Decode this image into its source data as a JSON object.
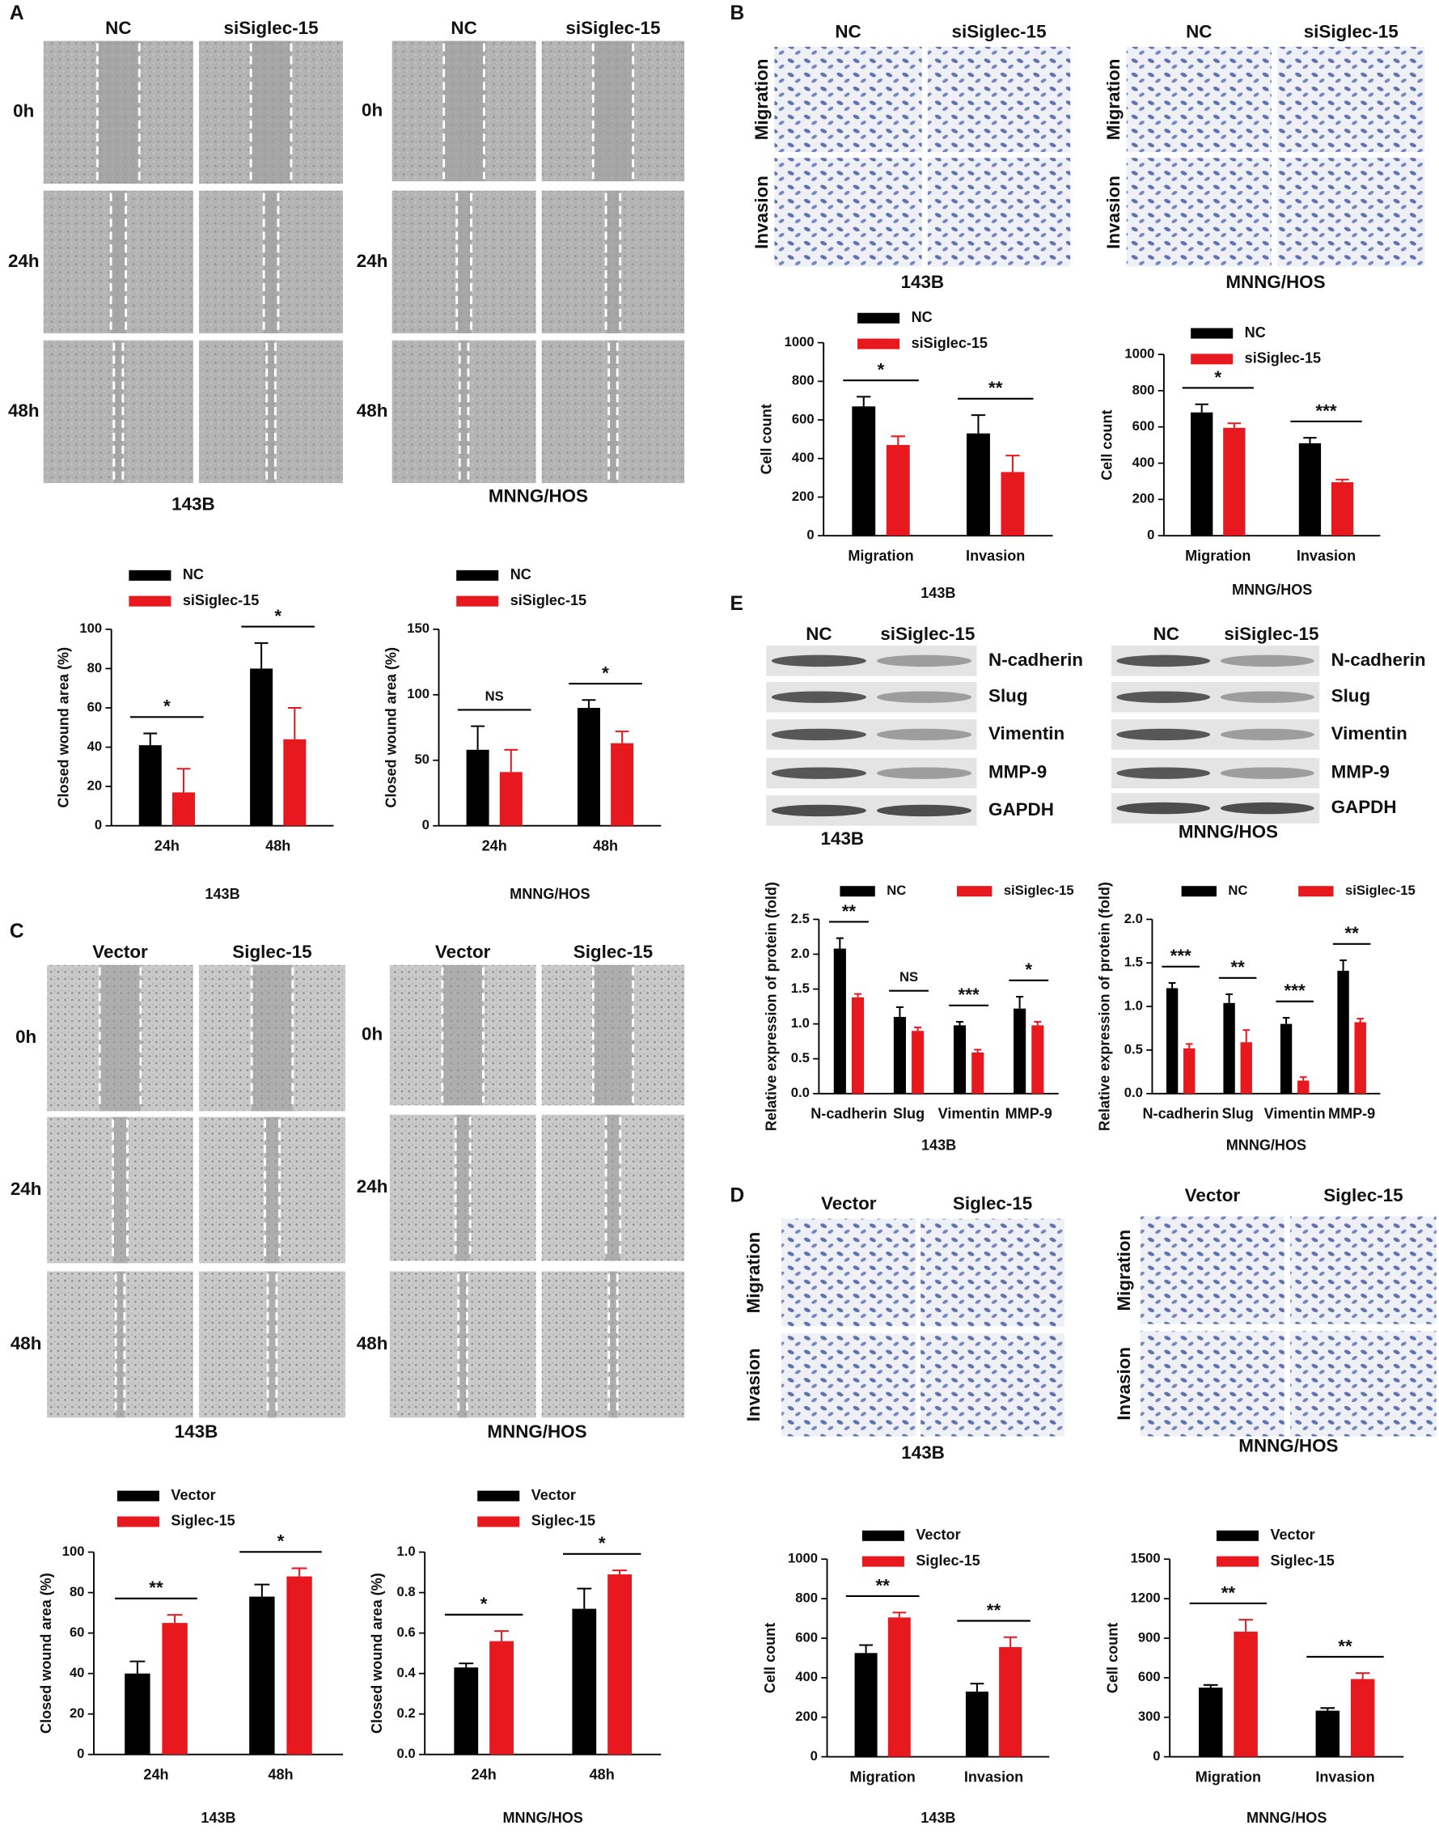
{
  "figure": {
    "panel_letters": [
      "A",
      "B",
      "E",
      "C",
      "D"
    ],
    "image_grids": [
      {
        "columns": [
          "NC",
          "siSiglec-15"
        ],
        "rows": [
          "0h",
          "24h",
          "48h"
        ],
        "caption": "143B"
      },
      {
        "columns": [
          "NC",
          "siSiglec-15"
        ],
        "rows": [
          "0h",
          "24h",
          "48h"
        ],
        "caption": "MNNG/HOS"
      },
      {
        "columns": [
          "NC",
          "siSiglec-15"
        ],
        "rows": [
          "Migration",
          "Invasion"
        ],
        "caption": "143B"
      },
      {
        "columns": [
          "NC",
          "siSiglec-15"
        ],
        "rows": [
          "Migration",
          "Invasion"
        ],
        "caption": "MNNG/HOS"
      },
      {
        "columns": [
          "Vector",
          "Siglec-15"
        ],
        "rows": [
          "0h",
          "24h",
          "48h"
        ],
        "caption": "143B"
      },
      {
        "columns": [
          "Vector",
          "Siglec-15"
        ],
        "rows": [
          "0h",
          "24h",
          "48h"
        ],
        "caption": "MNNG/HOS"
      },
      {
        "columns": [
          "Vector",
          "Siglec-15"
        ],
        "rows": [
          "Migration",
          "Invasion"
        ],
        "caption": "143B"
      },
      {
        "columns": [
          "Vector",
          "Siglec-15"
        ],
        "rows": [
          "Migration",
          "Invasion"
        ],
        "caption": "MNNG/HOS"
      }
    ],
    "blots": [
      {
        "columns": [
          "NC",
          "siSiglec-15"
        ],
        "proteins": [
          "N-cadherin",
          "Slug",
          "Vimentin",
          "MMP-9",
          "GAPDH"
        ],
        "caption": "143B"
      },
      {
        "columns": [
          "NC",
          "siSiglec-15"
        ],
        "proteins": [
          "N-cadherin",
          "Slug",
          "Vimentin",
          "MMP-9",
          "GAPDH"
        ],
        "caption": "MNNG/HOS"
      }
    ]
  },
  "chart_data": [
    {
      "type": "bar",
      "y_label": "Closed wound area (%)",
      "x_label": "143B",
      "categories": [
        "24h",
        "48h"
      ],
      "series": [
        {
          "name": "NC",
          "color": "#000000",
          "values": [
            41,
            80
          ],
          "errors": [
            6,
            13
          ]
        },
        {
          "name": "siSiglec-15",
          "color": "#e8191e",
          "values": [
            17,
            44
          ],
          "errors": [
            12,
            16
          ]
        }
      ],
      "annotations": [
        "*",
        "*"
      ],
      "ylim": [
        0,
        100
      ],
      "yticks": [
        0,
        20,
        40,
        60,
        80,
        100
      ]
    },
    {
      "type": "bar",
      "y_label": "Closed wound area (%)",
      "x_label": "MNNG/HOS",
      "categories": [
        "24h",
        "48h"
      ],
      "series": [
        {
          "name": "NC",
          "color": "#000000",
          "values": [
            58,
            90
          ],
          "errors": [
            18,
            6
          ]
        },
        {
          "name": "siSiglec-15",
          "color": "#e8191e",
          "values": [
            41,
            63
          ],
          "errors": [
            17,
            9
          ]
        }
      ],
      "annotations": [
        "NS",
        "*"
      ],
      "ylim": [
        0,
        150
      ],
      "yticks": [
        0,
        50,
        100,
        150
      ]
    },
    {
      "type": "bar",
      "y_label": "Cell count",
      "x_label": "143B",
      "categories": [
        "Migration",
        "Invasion"
      ],
      "series": [
        {
          "name": "NC",
          "color": "#000000",
          "values": [
            670,
            530
          ],
          "errors": [
            50,
            95
          ]
        },
        {
          "name": "siSiglec-15",
          "color": "#e8191e",
          "values": [
            470,
            330
          ],
          "errors": [
            45,
            85
          ]
        }
      ],
      "annotations": [
        "*",
        "**"
      ],
      "ylim": [
        0,
        1000
      ],
      "yticks": [
        0,
        200,
        400,
        600,
        800,
        1000
      ]
    },
    {
      "type": "bar",
      "y_label": "Cell count",
      "x_label": "MNNG/HOS",
      "categories": [
        "Migration",
        "Invasion"
      ],
      "series": [
        {
          "name": "NC",
          "color": "#000000",
          "values": [
            680,
            510
          ],
          "errors": [
            45,
            30
          ]
        },
        {
          "name": "siSiglec-15",
          "color": "#e8191e",
          "values": [
            595,
            295
          ],
          "errors": [
            25,
            15
          ]
        }
      ],
      "annotations": [
        "*",
        "***"
      ],
      "ylim": [
        0,
        1000
      ],
      "yticks": [
        0,
        200,
        400,
        600,
        800,
        1000
      ]
    },
    {
      "type": "bar",
      "y_label": "Relative expression of protein (fold)",
      "x_label": "143B",
      "categories": [
        "N-cadherin",
        "Slug",
        "Vimentin",
        "MMP-9"
      ],
      "series": [
        {
          "name": "NC",
          "color": "#000000",
          "values": [
            2.08,
            1.1,
            0.98,
            1.22
          ],
          "errors": [
            0.15,
            0.14,
            0.05,
            0.17
          ]
        },
        {
          "name": "siSiglec-15",
          "color": "#e8191e",
          "values": [
            1.38,
            0.9,
            0.59,
            0.98
          ],
          "errors": [
            0.05,
            0.05,
            0.04,
            0.05
          ]
        }
      ],
      "annotations": [
        "**",
        "NS",
        "***",
        "*"
      ],
      "ylim": [
        0,
        2.5
      ],
      "yticks": [
        {
          "value": 0,
          "label": "0.0"
        },
        0.5,
        {
          "value": 1,
          "label": "1.0"
        },
        1.5,
        {
          "value": 2,
          "label": "2.0"
        },
        2.5
      ]
    },
    {
      "type": "bar",
      "y_label": "Relative expression of protein (fold)",
      "x_label": "MNNG/HOS",
      "categories": [
        "N-cadherin",
        "Slug",
        "Vimentin",
        "MMP-9"
      ],
      "series": [
        {
          "name": "NC",
          "color": "#000000",
          "values": [
            1.21,
            1.04,
            0.8,
            1.41
          ],
          "errors": [
            0.06,
            0.1,
            0.07,
            0.12
          ]
        },
        {
          "name": "siSiglec-15",
          "color": "#e8191e",
          "values": [
            0.52,
            0.59,
            0.15,
            0.82
          ],
          "errors": [
            0.05,
            0.14,
            0.04,
            0.04
          ]
        }
      ],
      "annotations": [
        "***",
        "**",
        "***",
        "**"
      ],
      "ylim": [
        0,
        2
      ],
      "yticks": [
        {
          "value": 0,
          "label": "0.0"
        },
        0.5,
        {
          "value": 1,
          "label": "1.0"
        },
        1.5,
        {
          "value": 2,
          "label": "2.0"
        }
      ]
    },
    {
      "type": "bar",
      "y_label": "Closed wound area (%)",
      "x_label": "143B",
      "categories": [
        "24h",
        "48h"
      ],
      "series": [
        {
          "name": "Vector",
          "color": "#000000",
          "values": [
            40,
            78
          ],
          "errors": [
            6,
            6
          ]
        },
        {
          "name": "Siglec-15",
          "color": "#e8191e",
          "values": [
            65,
            88
          ],
          "errors": [
            4,
            4
          ]
        }
      ],
      "annotations": [
        "**",
        "*"
      ],
      "ylim": [
        0,
        100
      ],
      "yticks": [
        0,
        20,
        40,
        60,
        80,
        100
      ]
    },
    {
      "type": "bar",
      "y_label": "Closed wound area (%)",
      "x_label": "MNNG/HOS",
      "categories": [
        "24h",
        "48h"
      ],
      "series": [
        {
          "name": "Vector",
          "color": "#000000",
          "values": [
            0.43,
            0.72
          ],
          "errors": [
            0.02,
            0.1
          ]
        },
        {
          "name": "Siglec-15",
          "color": "#e8191e",
          "values": [
            0.56,
            0.89
          ],
          "errors": [
            0.05,
            0.02
          ]
        }
      ],
      "annotations": [
        "*",
        "*"
      ],
      "ylim": [
        0,
        1
      ],
      "yticks": [
        {
          "value": 0,
          "label": "0.0"
        },
        0.2,
        0.4,
        0.6,
        0.8,
        {
          "value": 1,
          "label": "1.0"
        }
      ]
    },
    {
      "type": "bar",
      "y_label": "Cell count",
      "x_label": "143B",
      "categories": [
        "Migration",
        "Invasion"
      ],
      "series": [
        {
          "name": "Vector",
          "color": "#000000",
          "values": [
            525,
            330
          ],
          "errors": [
            40,
            40
          ]
        },
        {
          "name": "Siglec-15",
          "color": "#e8191e",
          "values": [
            705,
            555
          ],
          "errors": [
            25,
            50
          ]
        }
      ],
      "annotations": [
        "**",
        "**"
      ],
      "ylim": [
        0,
        1000
      ],
      "yticks": [
        0,
        200,
        400,
        600,
        800,
        1000
      ]
    },
    {
      "type": "bar",
      "y_label": "Cell count",
      "x_label": "MNNG/HOS",
      "categories": [
        "Migration",
        "Invasion"
      ],
      "series": [
        {
          "name": "Vector",
          "color": "#000000",
          "values": [
            525,
            350
          ],
          "errors": [
            20,
            20
          ]
        },
        {
          "name": "Siglec-15",
          "color": "#e8191e",
          "values": [
            950,
            590
          ],
          "errors": [
            90,
            45
          ]
        }
      ],
      "annotations": [
        "**",
        "**"
      ],
      "ylim": [
        0,
        1500
      ],
      "yticks": [
        0,
        300,
        600,
        900,
        1200,
        1500
      ]
    }
  ]
}
